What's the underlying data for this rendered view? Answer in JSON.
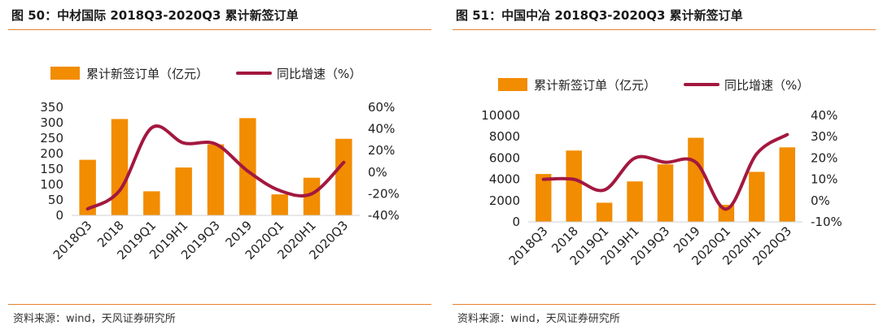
{
  "figures": [
    {
      "title": "图 50：中材国际 2018Q3-2020Q3 累计新签订单",
      "source": "资料来源：wind，天风证券研究所"
    },
    {
      "title": "图 51：中国中冶 2018Q3-2020Q3 累计新签订单",
      "source": "资料来源：wind，天风证券研究所"
    }
  ],
  "chart_data": [
    {
      "type": "bar",
      "categories": [
        "2018Q3",
        "2018",
        "2019Q1",
        "2019H1",
        "2019Q3",
        "2019",
        "2020Q1",
        "2020H1",
        "2020Q3"
      ],
      "series": [
        {
          "name": "累计新签订单（亿元）",
          "type": "bar",
          "axis": "left",
          "color": "#f28c00",
          "values": [
            180,
            312,
            78,
            155,
            230,
            315,
            68,
            122,
            248
          ]
        },
        {
          "name": "同比增速（%）",
          "type": "line",
          "axis": "right",
          "color": "#a3183f",
          "values": [
            -34,
            -17,
            41,
            27,
            26,
            1,
            -17,
            -20,
            9
          ]
        }
      ],
      "left_axis": {
        "min": 0,
        "max": 350,
        "ticks": [
          0,
          50,
          100,
          150,
          200,
          250,
          300,
          350
        ]
      },
      "right_axis": {
        "min": -40,
        "max": 60,
        "ticks": [
          "-40%",
          "-20%",
          "0%",
          "20%",
          "40%",
          "60%"
        ]
      },
      "legend": "top",
      "grid": false
    },
    {
      "type": "bar",
      "categories": [
        "2018Q3",
        "2018",
        "2019Q1",
        "2019H1",
        "2019Q3",
        "2019",
        "2020Q1",
        "2020H1",
        "2020Q3"
      ],
      "series": [
        {
          "name": "累计新签订单（亿元）",
          "type": "bar",
          "axis": "left",
          "color": "#f28c00",
          "values": [
            4500,
            6700,
            1800,
            3800,
            5400,
            7900,
            1600,
            4700,
            7000
          ]
        },
        {
          "name": "同比增速（%）",
          "type": "line",
          "axis": "right",
          "color": "#a3183f",
          "values": [
            10,
            10,
            5,
            20,
            18,
            18,
            -4,
            22,
            31
          ]
        }
      ],
      "left_axis": {
        "min": 0,
        "max": 10000,
        "ticks": [
          0,
          2000,
          4000,
          6000,
          8000,
          10000
        ]
      },
      "right_axis": {
        "min": -10,
        "max": 40,
        "ticks": [
          "-10%",
          "0%",
          "10%",
          "20%",
          "30%",
          "40%"
        ]
      },
      "legend": "top",
      "grid": false
    }
  ]
}
